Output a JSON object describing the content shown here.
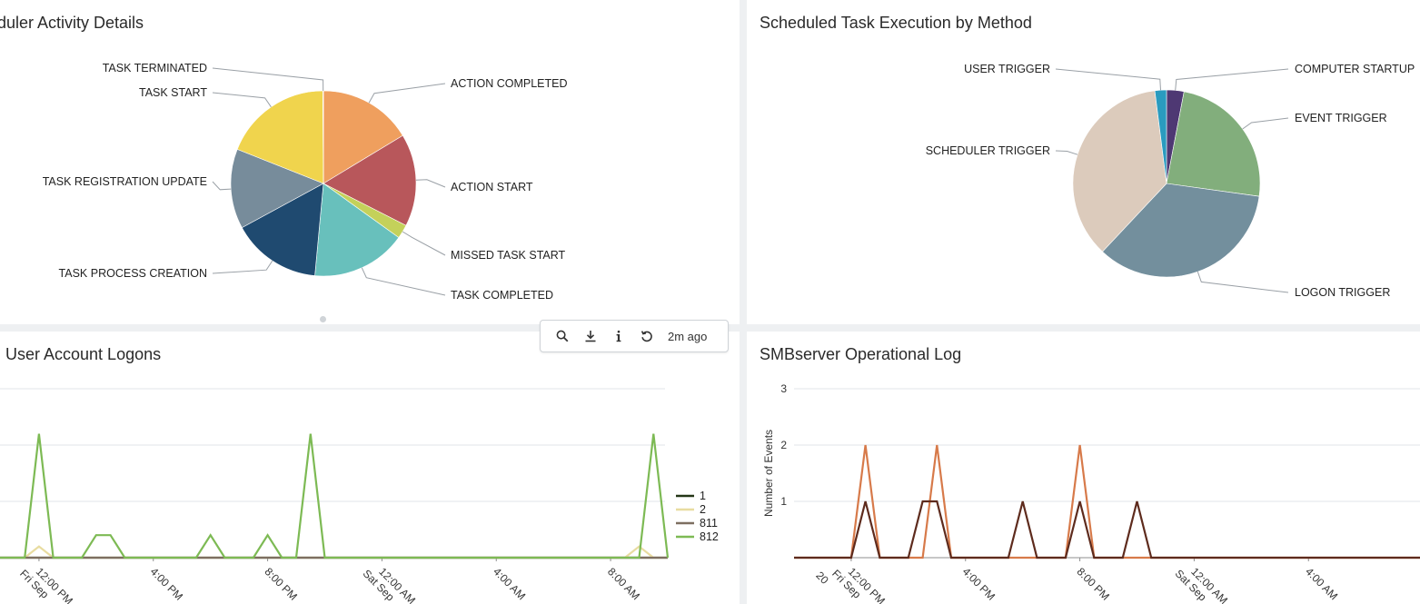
{
  "toolbar": {
    "status": "2m ago",
    "icons": [
      "search-icon",
      "download-icon",
      "info-icon",
      "refresh-icon"
    ]
  },
  "panels": {
    "scheduler_activity": {
      "title": "Scheduler Activity Details",
      "visible_title": "duler Activity Details"
    },
    "task_execution": {
      "title": "Scheduled Task Execution by Method"
    },
    "user_logons": {
      "title": "User Account Logons"
    },
    "smbserver": {
      "title": "SMBserver Operational Log"
    }
  },
  "chart_data": [
    {
      "type": "pie",
      "panel": "scheduler_activity",
      "title": "Scheduler Activity Details",
      "start_angle_deg": 0,
      "slices": [
        {
          "label": "ACTION COMPLETED",
          "value": 15.5,
          "color": "#ef9f5e"
        },
        {
          "label": "ACTION START",
          "value": 15.3,
          "color": "#b8575b"
        },
        {
          "label": "MISSED TASK START",
          "value": 2.3,
          "color": "#c4d15a"
        },
        {
          "label": "TASK COMPLETED",
          "value": 15.7,
          "color": "#68c0bc"
        },
        {
          "label": "TASK PROCESS CREATION",
          "value": 14.8,
          "color": "#1f4a70"
        },
        {
          "label": "TASK REGISTRATION UPDATE",
          "value": 13.2,
          "color": "#778c9b"
        },
        {
          "label": "TASK START",
          "value": 17.9,
          "color": "#f0d44d"
        },
        {
          "label": "TASK TERMINATED",
          "value": 0.1,
          "color": "#e8b94a"
        }
      ]
    },
    {
      "type": "pie",
      "panel": "task_execution",
      "title": "Scheduled Task Execution by Method",
      "start_angle_deg": 0,
      "slices": [
        {
          "label": "COMPUTER STARTUP",
          "value": 3.0,
          "color": "#4e3873"
        },
        {
          "label": "EVENT TRIGGER",
          "value": 24.2,
          "color": "#82ae7c"
        },
        {
          "label": "LOGON TRIGGER",
          "value": 34.8,
          "color": "#738f9d"
        },
        {
          "label": "SCHEDULER TRIGGER",
          "value": 36.0,
          "color": "#dccbbc"
        },
        {
          "label": "USER TRIGGER",
          "value": 2.0,
          "color": "#2a9bbf"
        }
      ]
    },
    {
      "type": "line",
      "panel": "user_logons",
      "title": "User Account Logons",
      "xlabel": "",
      "ylabel": "",
      "ylim": [
        0,
        3
      ],
      "xlim": [
        "2023-09-08 10:00",
        "2023-09-09 10:00"
      ],
      "x_ticks": [
        "12:00 PM\nFri Sep",
        "4:00 PM",
        "8:00 PM",
        "12:00 AM\nSat Sep",
        "4:00 AM",
        "8:00 AM"
      ],
      "grid": true,
      "legend_position": "right",
      "series": [
        {
          "name": "1",
          "color": "#243617",
          "points": []
        },
        {
          "name": "2",
          "color": "#e8dca0",
          "points": [
            [
              "2023-09-08 12:00",
              0.2
            ],
            [
              "2023-09-09 09:00",
              0.2
            ]
          ]
        },
        {
          "name": "811",
          "color": "#7d6f60",
          "points": []
        },
        {
          "name": "812",
          "color": "#7dba54",
          "points": [
            [
              "2023-09-08 12:00",
              2.2
            ],
            [
              "2023-09-08 14:00",
              0.4
            ],
            [
              "2023-09-08 14:30",
              0.4
            ],
            [
              "2023-09-08 18:00",
              0.4
            ],
            [
              "2023-09-08 20:00",
              0.4
            ],
            [
              "2023-09-08 21:30",
              2.2
            ],
            [
              "2023-09-09 09:30",
              2.2
            ]
          ]
        }
      ]
    },
    {
      "type": "line",
      "panel": "smbserver",
      "title": "SMBserver Operational Log",
      "xlabel": "",
      "ylabel": "Number of Events",
      "ylim": [
        0,
        3
      ],
      "y_ticks": [
        1,
        2,
        3
      ],
      "xlim": [
        "2023-09-08 10:00",
        "2023-09-09 10:00"
      ],
      "x_ticks": [
        "12:00 PM\nFri Sep\n20",
        "4:00 PM",
        "8:00 PM",
        "12:00 AM\nSat Sep",
        "4:00 AM",
        "8:00 AM"
      ],
      "grid": true,
      "series": [
        {
          "name": "",
          "color": "#d77a4a",
          "points": [
            [
              "2023-09-08 12:30",
              2
            ],
            [
              "2023-09-08 15:00",
              2
            ],
            [
              "2023-09-08 20:00",
              2
            ]
          ]
        },
        {
          "name": "",
          "color": "#5e2b1d",
          "points": [
            [
              "2023-09-08 12:30",
              1
            ],
            [
              "2023-09-08 14:30",
              1
            ],
            [
              "2023-09-08 15:00",
              1
            ],
            [
              "2023-09-08 18:00",
              1
            ],
            [
              "2023-09-08 20:00",
              1
            ],
            [
              "2023-09-08 22:00",
              1
            ]
          ]
        }
      ]
    }
  ]
}
